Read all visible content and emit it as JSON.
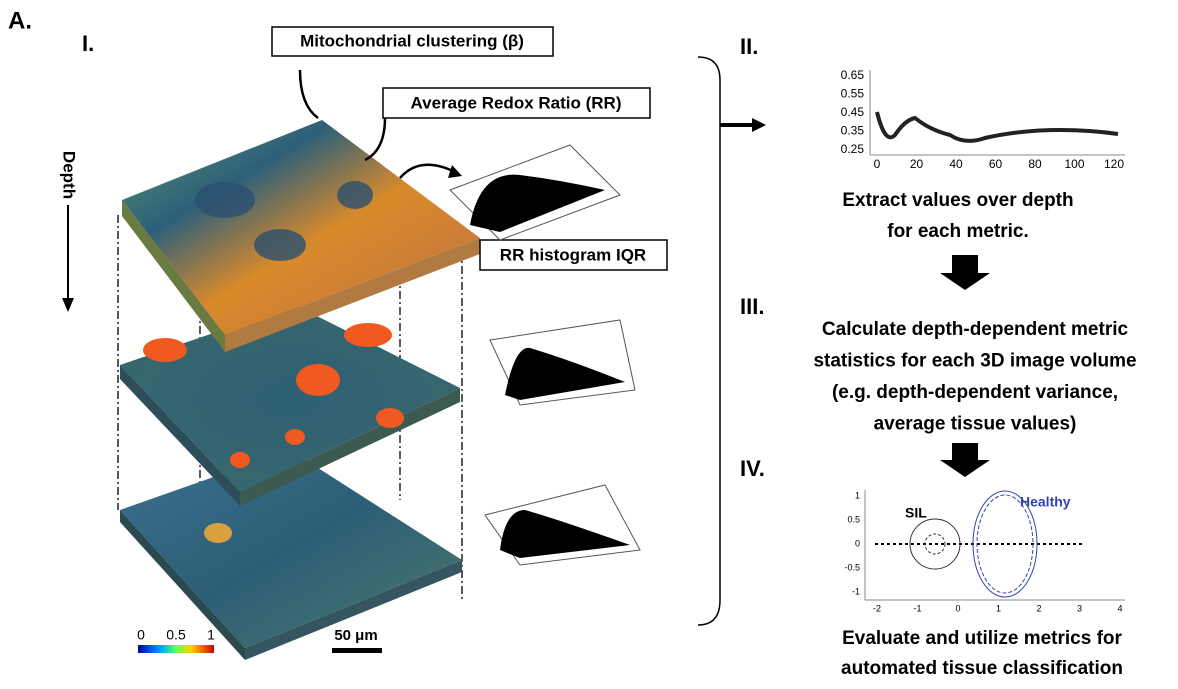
{
  "panel_label": "A.",
  "steps": {
    "i": "I.",
    "ii": "II.",
    "iii": "III.",
    "iv": "IV."
  },
  "labels": {
    "clustering": "Mitochondrial clustering (β)",
    "redox": "Average Redox Ratio (RR)",
    "iqr": "RR histogram IQR",
    "depth": "Depth"
  },
  "colorbar": {
    "ticks": [
      0,
      0.5,
      1
    ]
  },
  "scale_bar": "50 μm",
  "depth_plot": {
    "yticks": [
      0.65,
      0.55,
      0.45,
      0.35,
      0.25
    ],
    "xticks": [
      0,
      20,
      40,
      60,
      80,
      100,
      120
    ]
  },
  "texts": {
    "extract": [
      "Extract values over depth",
      "for each metric."
    ],
    "calculate": [
      "Calculate depth-dependent metric",
      "statistics for each 3D image volume",
      "(e.g. depth-dependent variance,",
      "average tissue values)"
    ],
    "evaluate": [
      "Evaluate and utilize metrics for",
      "automated tissue classification"
    ]
  },
  "class_plot": {
    "yticks": [
      1,
      0.5,
      0,
      -0.5,
      -1
    ],
    "xticks": [
      -2,
      -1,
      0,
      1,
      2,
      3,
      4
    ],
    "groups": [
      "SIL",
      "Healthy"
    ]
  }
}
